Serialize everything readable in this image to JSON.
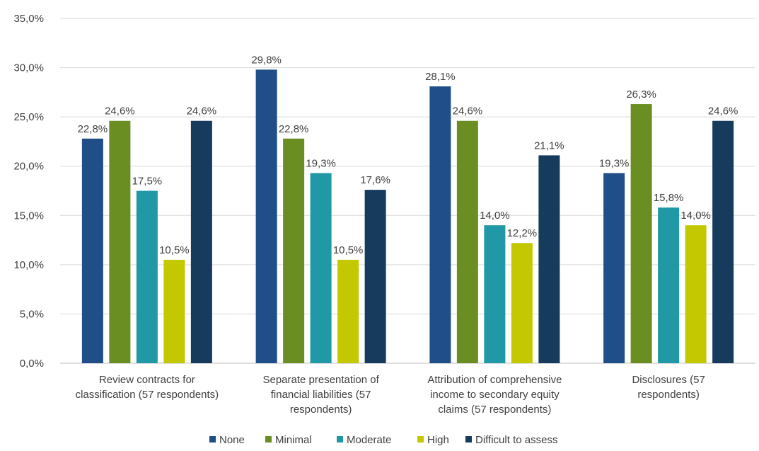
{
  "chart_data": {
    "type": "bar",
    "title": "",
    "xlabel": "",
    "ylabel": "",
    "ylim": [
      0,
      35
    ],
    "yticks": [
      0,
      5,
      10,
      15,
      20,
      25,
      30,
      35
    ],
    "ytick_labels": [
      "0,0%",
      "5,0%",
      "10,0%",
      "15,0%",
      "20,0%",
      "25,0%",
      "30,0%",
      "35,0%"
    ],
    "grid": true,
    "legend_position": "bottom",
    "categories": [
      [
        "Review contracts for",
        "classification (57 respondents)"
      ],
      [
        "Separate presentation of",
        "financial liabilities (57",
        "respondents)"
      ],
      [
        "Attribution of comprehensive",
        "income to secondary equity",
        "claims (57 respondents)"
      ],
      [
        "Disclosures                                  (57",
        "respondents)"
      ]
    ],
    "series": [
      {
        "name": "None",
        "color": "#1f4e89",
        "values": [
          22.8,
          29.8,
          28.1,
          19.3
        ],
        "labels": [
          "22,8%",
          "29,8%",
          "28,1%",
          "19,3%"
        ]
      },
      {
        "name": "Minimal",
        "color": "#6b8e23",
        "values": [
          24.6,
          22.8,
          24.6,
          26.3
        ],
        "labels": [
          "24,6%",
          "22,8%",
          "24,6%",
          "26,3%"
        ]
      },
      {
        "name": "Moderate",
        "color": "#2098a5",
        "values": [
          17.5,
          19.3,
          14.0,
          15.8
        ],
        "labels": [
          "17,5%",
          "19,3%",
          "14,0%",
          "15,8%"
        ]
      },
      {
        "name": "High",
        "color": "#c4c800",
        "values": [
          10.5,
          10.5,
          12.2,
          14.0
        ],
        "labels": [
          "10,5%",
          "10,5%",
          "12,2%",
          "14,0%"
        ]
      },
      {
        "name": "Difficult to assess",
        "color": "#173b5c",
        "values": [
          24.6,
          17.6,
          21.1,
          24.6
        ],
        "labels": [
          "24,6%",
          "17,6%",
          "21,1%",
          "24,6%"
        ]
      }
    ]
  }
}
